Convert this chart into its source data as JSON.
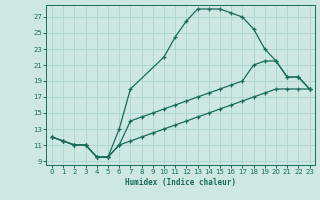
{
  "xlabel": "Humidex (Indice chaleur)",
  "bg_color": "#cce8e0",
  "grid_color": "#b0d8d0",
  "line_color": "#1a6b5a",
  "xlim": [
    -0.5,
    23.5
  ],
  "ylim": [
    8.5,
    28.5
  ],
  "xticks": [
    0,
    1,
    2,
    3,
    4,
    5,
    6,
    7,
    8,
    9,
    10,
    11,
    12,
    13,
    14,
    15,
    16,
    17,
    18,
    19,
    20,
    21,
    22,
    23
  ],
  "yticks": [
    9,
    11,
    13,
    15,
    17,
    19,
    21,
    23,
    25,
    27
  ],
  "curve1_x": [
    0,
    1,
    2,
    3,
    4,
    5,
    6,
    7,
    10,
    11,
    12,
    13,
    14,
    15,
    16,
    17,
    18,
    19,
    20,
    21,
    22,
    23
  ],
  "curve1_y": [
    12,
    11.5,
    11,
    11,
    9.5,
    9.5,
    13,
    18,
    22,
    24.5,
    26.5,
    28,
    28,
    28,
    27.5,
    27,
    25.5,
    23,
    21.5,
    19.5,
    19.5,
    18
  ],
  "curve2_x": [
    0,
    1,
    2,
    3,
    4,
    5,
    6,
    7,
    8,
    9,
    10,
    11,
    12,
    13,
    14,
    15,
    16,
    17,
    18,
    19,
    20,
    21,
    22,
    23
  ],
  "curve2_y": [
    12,
    11.5,
    11,
    11,
    9.5,
    9.5,
    11,
    11.5,
    12,
    12.5,
    13,
    13.5,
    14,
    14.5,
    15,
    15.5,
    16,
    16.5,
    17,
    17.5,
    18,
    18,
    18,
    18
  ],
  "curve3_x": [
    0,
    1,
    2,
    3,
    4,
    5,
    6,
    7,
    8,
    9,
    10,
    11,
    12,
    13,
    14,
    15,
    16,
    17,
    18,
    19,
    20,
    21,
    22,
    23
  ],
  "curve3_y": [
    12,
    11.5,
    11,
    11,
    9.5,
    9.5,
    11,
    14,
    14.5,
    15,
    15.5,
    16,
    16.5,
    17,
    17.5,
    18,
    18.5,
    19,
    21,
    21.5,
    21.5,
    19.5,
    19.5,
    18
  ]
}
